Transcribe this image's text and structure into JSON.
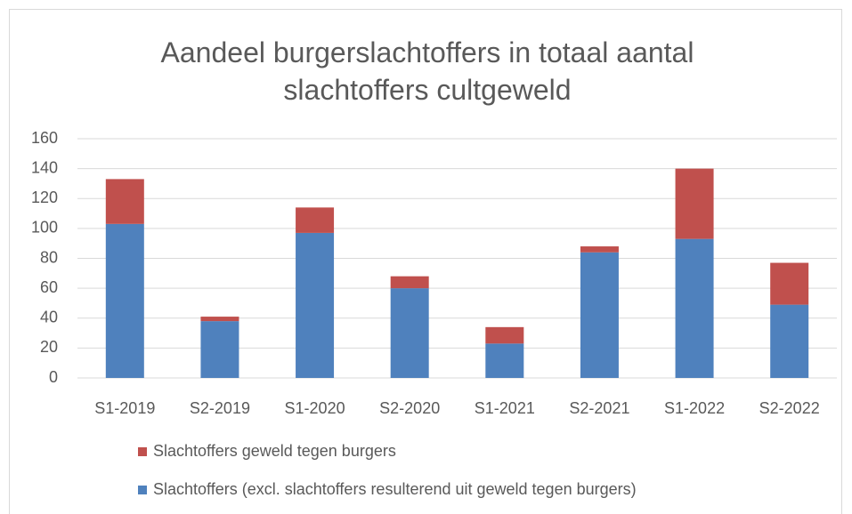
{
  "chart_data": {
    "type": "stacked_bar",
    "title": "Aandeel burgerslachtoffers in totaal aantal slachtoffers cultgeweld",
    "categories": [
      "S1-2019",
      "S2-2019",
      "S1-2020",
      "S2-2020",
      "S1-2021",
      "S2-2021",
      "S1-2022",
      "S2-2022"
    ],
    "series": [
      {
        "name": "Slachtoffers (excl. slachtoffers resulterend uit geweld tegen burgers)",
        "color": "#4f81bd",
        "values": [
          103,
          38,
          97,
          60,
          23,
          84,
          93,
          49
        ]
      },
      {
        "name": "Slachtoffers geweld tegen burgers",
        "color": "#c0504d",
        "values": [
          30,
          3,
          17,
          8,
          11,
          4,
          47,
          28
        ]
      }
    ],
    "ylim": [
      0,
      160
    ],
    "yticks": [
      0,
      20,
      40,
      60,
      80,
      100,
      120,
      140,
      160
    ],
    "grid": true,
    "legend": "bottom"
  }
}
